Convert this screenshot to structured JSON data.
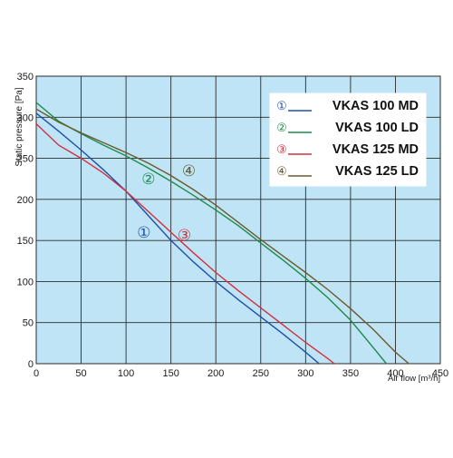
{
  "chart_data": {
    "type": "line",
    "title": "",
    "xlabel": "Air flow [m³/h]",
    "ylabel": "Static pressure [Pa]",
    "xlim": [
      0,
      450
    ],
    "ylim": [
      0,
      350
    ],
    "x_ticks": [
      "0",
      "50",
      "100",
      "150",
      "200",
      "250",
      "300",
      "350",
      "400",
      "450"
    ],
    "y_ticks": [
      "0",
      "50",
      "100",
      "150",
      "200",
      "250",
      "300",
      "350"
    ],
    "grid": true,
    "legend_position": "top-right",
    "colors": {
      "background": "#bfe4f5",
      "grid": "#2a2a2a"
    },
    "series": [
      {
        "name": "VKAS 100 MD",
        "marker": "①",
        "color": "#1f4fa8",
        "marker_label_point": [
          120,
          160
        ],
        "points": [
          [
            0,
            305
          ],
          [
            25,
            283
          ],
          [
            50,
            260
          ],
          [
            75,
            236
          ],
          [
            100,
            210
          ],
          [
            125,
            180
          ],
          [
            150,
            150
          ],
          [
            175,
            124
          ],
          [
            200,
            100
          ],
          [
            225,
            78
          ],
          [
            250,
            57
          ],
          [
            275,
            36
          ],
          [
            300,
            14
          ],
          [
            315,
            0
          ]
        ]
      },
      {
        "name": "VKAS 100 LD",
        "marker": "②",
        "color": "#1f8a4a",
        "marker_label_point": [
          125,
          225
        ],
        "points": [
          [
            0,
            318
          ],
          [
            25,
            295
          ],
          [
            50,
            280
          ],
          [
            75,
            266
          ],
          [
            100,
            253
          ],
          [
            125,
            238
          ],
          [
            150,
            222
          ],
          [
            175,
            205
          ],
          [
            200,
            187
          ],
          [
            225,
            168
          ],
          [
            250,
            147
          ],
          [
            275,
            126
          ],
          [
            300,
            104
          ],
          [
            325,
            80
          ],
          [
            350,
            53
          ],
          [
            375,
            20
          ],
          [
            390,
            0
          ]
        ]
      },
      {
        "name": "VKAS 125 MD",
        "marker": "③",
        "color": "#d03040",
        "marker_label_point": [
          165,
          157
        ],
        "points": [
          [
            0,
            292
          ],
          [
            25,
            266
          ],
          [
            50,
            250
          ],
          [
            75,
            232
          ],
          [
            100,
            210
          ],
          [
            125,
            185
          ],
          [
            150,
            160
          ],
          [
            175,
            135
          ],
          [
            200,
            111
          ],
          [
            225,
            89
          ],
          [
            250,
            68
          ],
          [
            275,
            47
          ],
          [
            300,
            26
          ],
          [
            325,
            6
          ],
          [
            332,
            0
          ]
        ]
      },
      {
        "name": "VKAS 125 LD",
        "marker": "④",
        "color": "#6b5a2c",
        "marker_label_point": [
          170,
          235
        ],
        "points": [
          [
            0,
            310
          ],
          [
            25,
            294
          ],
          [
            50,
            281
          ],
          [
            75,
            269
          ],
          [
            100,
            257
          ],
          [
            125,
            244
          ],
          [
            150,
            229
          ],
          [
            175,
            212
          ],
          [
            200,
            193
          ],
          [
            225,
            172
          ],
          [
            250,
            151
          ],
          [
            275,
            131
          ],
          [
            300,
            111
          ],
          [
            325,
            90
          ],
          [
            350,
            67
          ],
          [
            375,
            42
          ],
          [
            400,
            14
          ],
          [
            415,
            0
          ]
        ]
      }
    ]
  }
}
